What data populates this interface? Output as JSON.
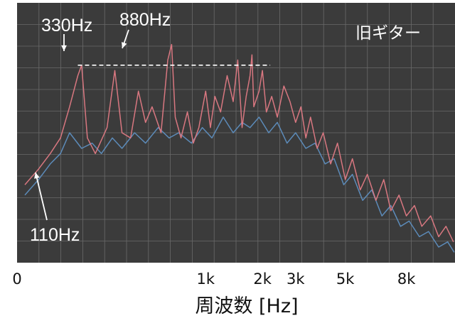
{
  "chart_data": {
    "type": "line",
    "title": "",
    "xlabel": "周波数 [Hz]",
    "ylabel": "",
    "x_scale": "log",
    "xlim": [
      50,
      10500
    ],
    "ylim": [
      0,
      100
    ],
    "grid": true,
    "legend_label": "旧ギター",
    "x_ticks": [
      {
        "value": 50,
        "label": "0"
      },
      {
        "value": 500,
        "label": "1k"
      },
      {
        "value": 1000,
        "label": "2k"
      },
      {
        "value": 1500,
        "label": "3k"
      },
      {
        "value": 2750,
        "label": "5k"
      },
      {
        "value": 5800,
        "label": "8k"
      }
    ],
    "annotations": [
      {
        "text": "330Hz",
        "x": 330,
        "y": 86
      },
      {
        "text": "880Hz",
        "x": 880,
        "y": 87
      },
      {
        "text": "110Hz",
        "x": 110,
        "y": 35
      }
    ],
    "reference_line": {
      "y": 76,
      "x_range": [
        105,
        1100
      ]
    },
    "series": [
      {
        "color": "#e07a84",
        "points": [
          [
            55,
            30
          ],
          [
            65,
            36
          ],
          [
            75,
            42
          ],
          [
            85,
            48
          ],
          [
            95,
            60
          ],
          [
            105,
            72
          ],
          [
            110,
            76
          ],
          [
            118,
            48
          ],
          [
            130,
            42
          ],
          [
            150,
            52
          ],
          [
            165,
            74
          ],
          [
            180,
            50
          ],
          [
            200,
            48
          ],
          [
            220,
            66
          ],
          [
            240,
            54
          ],
          [
            260,
            60
          ],
          [
            290,
            50
          ],
          [
            315,
            78
          ],
          [
            330,
            84
          ],
          [
            345,
            56
          ],
          [
            370,
            48
          ],
          [
            400,
            58
          ],
          [
            430,
            46
          ],
          [
            460,
            52
          ],
          [
            500,
            66
          ],
          [
            530,
            52
          ],
          [
            560,
            64
          ],
          [
            600,
            58
          ],
          [
            650,
            72
          ],
          [
            700,
            62
          ],
          [
            740,
            78
          ],
          [
            780,
            52
          ],
          [
            820,
            64
          ],
          [
            860,
            72
          ],
          [
            880,
            80
          ],
          [
            900,
            60
          ],
          [
            960,
            66
          ],
          [
            1000,
            74
          ],
          [
            1050,
            58
          ],
          [
            1120,
            64
          ],
          [
            1200,
            56
          ],
          [
            1300,
            68
          ],
          [
            1400,
            62
          ],
          [
            1500,
            54
          ],
          [
            1600,
            60
          ],
          [
            1700,
            48
          ],
          [
            1800,
            56
          ],
          [
            1950,
            44
          ],
          [
            2100,
            50
          ],
          [
            2300,
            38
          ],
          [
            2500,
            46
          ],
          [
            2750,
            32
          ],
          [
            3000,
            40
          ],
          [
            3300,
            28
          ],
          [
            3600,
            34
          ],
          [
            4000,
            24
          ],
          [
            4400,
            32
          ],
          [
            4800,
            20
          ],
          [
            5300,
            26
          ],
          [
            5800,
            18
          ],
          [
            6400,
            22
          ],
          [
            7000,
            14
          ],
          [
            7800,
            18
          ],
          [
            8600,
            10
          ],
          [
            9400,
            14
          ],
          [
            10300,
            8
          ]
        ]
      },
      {
        "color": "#5e8fc0",
        "points": [
          [
            55,
            26
          ],
          [
            65,
            32
          ],
          [
            75,
            38
          ],
          [
            85,
            42
          ],
          [
            95,
            50
          ],
          [
            110,
            44
          ],
          [
            125,
            46
          ],
          [
            140,
            42
          ],
          [
            160,
            48
          ],
          [
            180,
            44
          ],
          [
            210,
            50
          ],
          [
            240,
            46
          ],
          [
            280,
            52
          ],
          [
            320,
            48
          ],
          [
            360,
            50
          ],
          [
            420,
            46
          ],
          [
            480,
            52
          ],
          [
            540,
            48
          ],
          [
            620,
            56
          ],
          [
            700,
            50
          ],
          [
            780,
            54
          ],
          [
            860,
            52
          ],
          [
            960,
            56
          ],
          [
            1080,
            50
          ],
          [
            1200,
            54
          ],
          [
            1350,
            46
          ],
          [
            1500,
            50
          ],
          [
            1700,
            44
          ],
          [
            1900,
            46
          ],
          [
            2150,
            38
          ],
          [
            2400,
            40
          ],
          [
            2700,
            30
          ],
          [
            3000,
            34
          ],
          [
            3400,
            24
          ],
          [
            3800,
            28
          ],
          [
            4300,
            18
          ],
          [
            4800,
            22
          ],
          [
            5400,
            14
          ],
          [
            6000,
            16
          ],
          [
            6800,
            10
          ],
          [
            7600,
            12
          ],
          [
            8600,
            6
          ],
          [
            9600,
            8
          ],
          [
            10400,
            4
          ]
        ]
      }
    ]
  }
}
